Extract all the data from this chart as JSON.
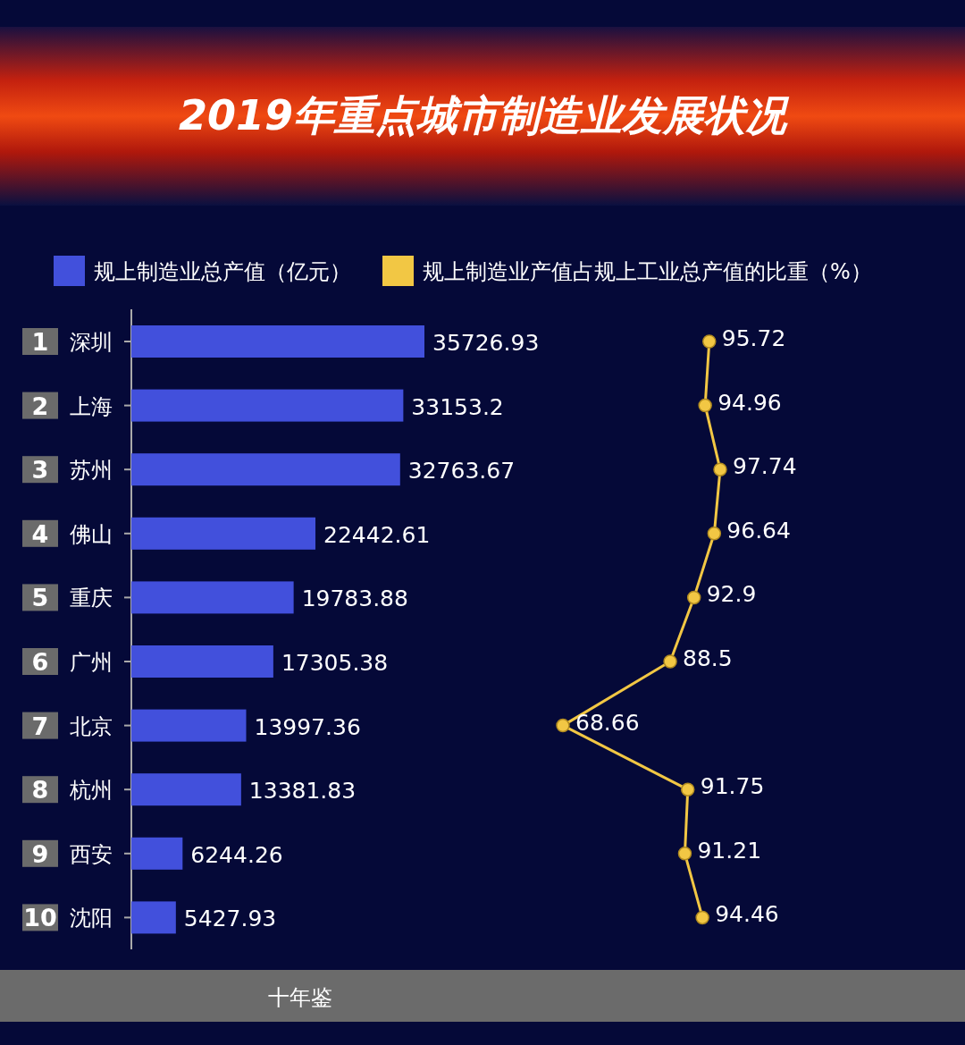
{
  "chart_data": [
    {
      "type": "bar",
      "orientation": "horizontal",
      "title": "2019年重点城市制造业发展状况",
      "categories": [
        "深圳",
        "上海",
        "苏州",
        "佛山",
        "重庆",
        "广州",
        "北京",
        "杭州",
        "西安",
        "沈阳"
      ],
      "series": [
        {
          "name": "规上制造业总产值（亿元）",
          "color": "#4250dc",
          "values": [
            35726.93,
            33153.2,
            32763.67,
            22442.61,
            19783.88,
            17305.38,
            13997.36,
            13381.83,
            6244.26,
            5427.93
          ]
        }
      ],
      "tick_labels": "y",
      "data_labels": true,
      "legend": "top",
      "annotations": [
        "1",
        "2",
        "3",
        "4",
        "5",
        "6",
        "7",
        "8",
        "9",
        "10",
        "十年鉴"
      ]
    },
    {
      "type": "line",
      "orientation": "horizontal",
      "categories": [
        null,
        null,
        null,
        null,
        null,
        null,
        null,
        null,
        null,
        null
      ],
      "series": [
        {
          "name": "规上制造业产值占规上工业总产值的比重（%）",
          "color": "#f2c744",
          "values": [
            95.72,
            94.96,
            97.74,
            96.64,
            92.9,
            88.5,
            68.66,
            91.75,
            91.21,
            94.46
          ]
        }
      ],
      "tick_labels": false,
      "data_labels": true,
      "marker": "circle",
      "legend": "top"
    }
  ]
}
